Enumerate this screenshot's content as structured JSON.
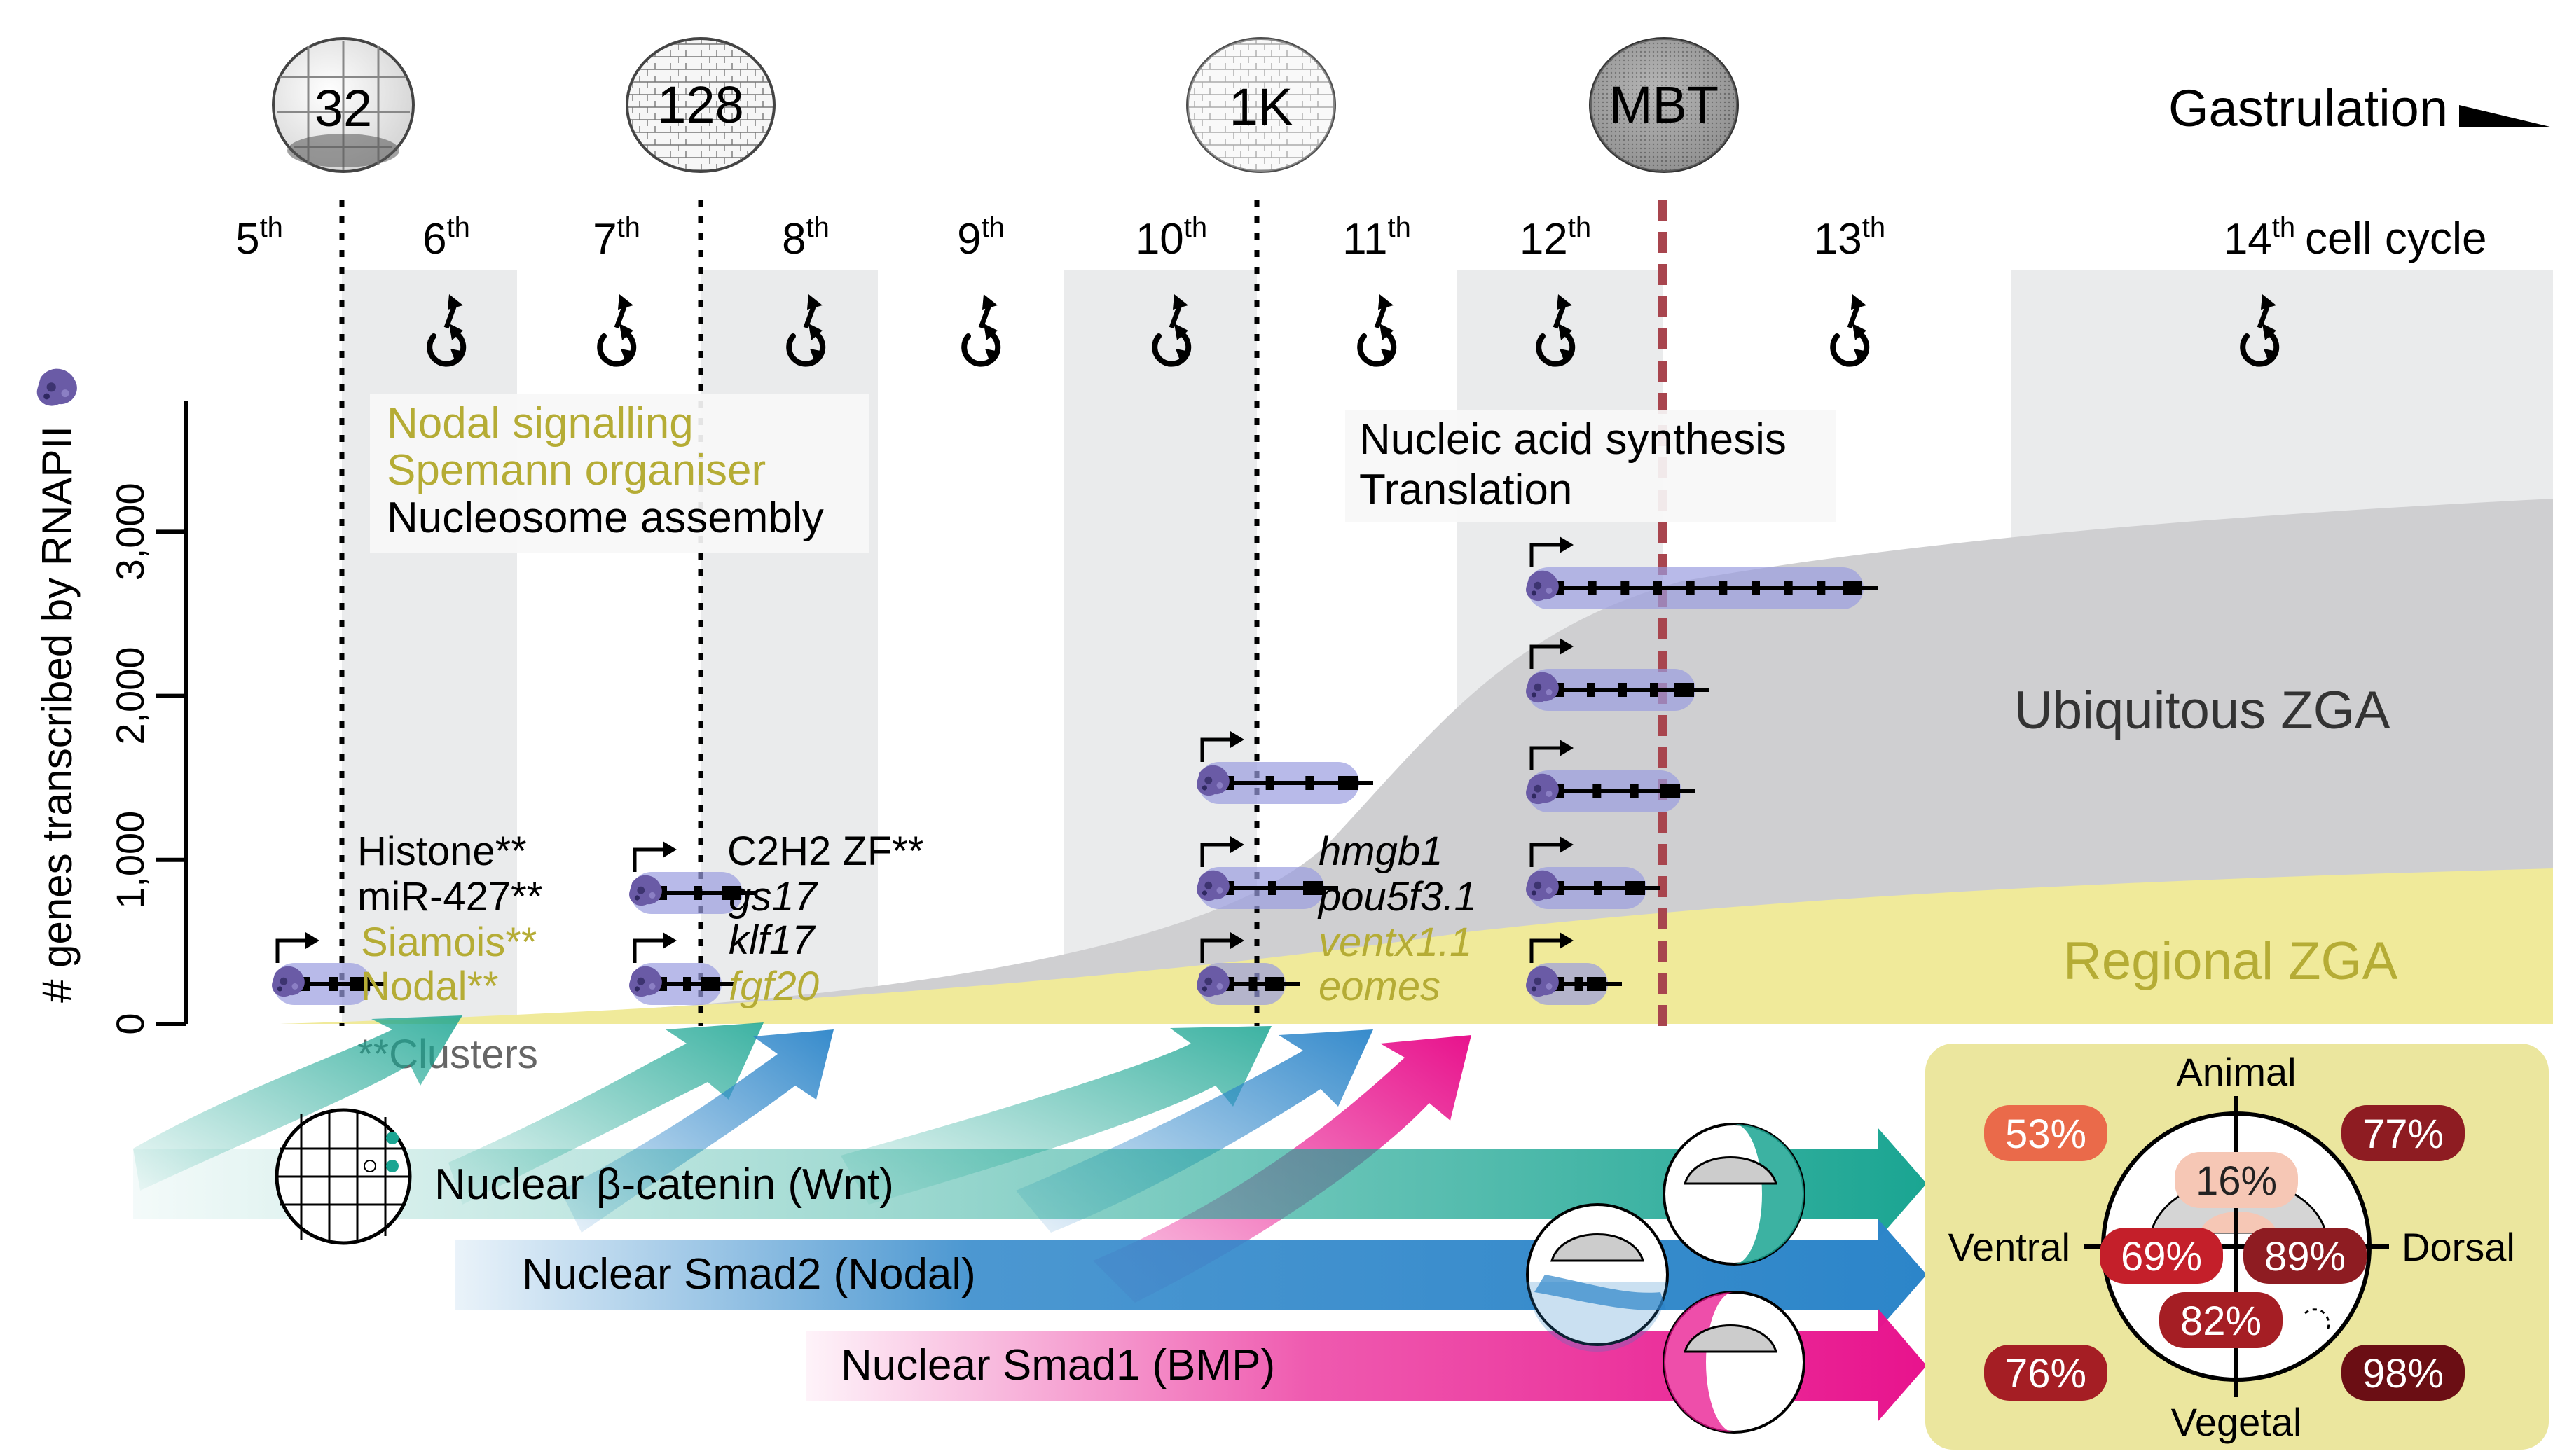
{
  "stages": [
    {
      "key": "32",
      "label": "32"
    },
    {
      "key": "128",
      "label": "128"
    },
    {
      "key": "1k",
      "label": "1K"
    },
    {
      "key": "mbt",
      "label": "MBT"
    }
  ],
  "gastrulation_label": "Gastrulation",
  "cell_cycles": [
    {
      "num": "5",
      "sup": "th"
    },
    {
      "num": "6",
      "sup": "th"
    },
    {
      "num": "7",
      "sup": "th"
    },
    {
      "num": "8",
      "sup": "th"
    },
    {
      "num": "9",
      "sup": "th"
    },
    {
      "num": "10",
      "sup": "th"
    },
    {
      "num": "11",
      "sup": "th"
    },
    {
      "num": "12",
      "sup": "th"
    },
    {
      "num": "13",
      "sup": "th"
    },
    {
      "num": "14",
      "sup": "th"
    }
  ],
  "cell_cycle_label": "cell cycle",
  "y_axis": {
    "label": "# genes transcribed by RNAPII",
    "ticks": [
      "0",
      "1,000",
      "2,000",
      "3,000"
    ],
    "range": [
      0,
      3800
    ]
  },
  "colors": {
    "olive": "#b5ac35",
    "gray_area": "#cfcfd1",
    "yellow_area": "#f0ea9a",
    "band": "#eaebec",
    "mbt_line": "#a8454e",
    "teal": "#1aa592",
    "blue": "#2c85c9",
    "magenta": "#e8138d",
    "panel": "#ebe69e"
  },
  "go_box_left": [
    {
      "text": "Nodal signalling",
      "color": "olive"
    },
    {
      "text": "Spemann organiser",
      "color": "olive"
    },
    {
      "text": "Nucleosome assembly",
      "color": "black"
    }
  ],
  "go_box_right": [
    {
      "text": "Nucleic acid synthesis",
      "color": "black"
    },
    {
      "text": "Translation",
      "color": "black"
    }
  ],
  "gene_labels": {
    "col6": [
      {
        "text": "Histone**",
        "color": "black",
        "italic": false
      },
      {
        "text": "miR-427**",
        "color": "black",
        "italic": false
      },
      {
        "text": "Siamois**",
        "color": "olive",
        "italic": false
      },
      {
        "text": "Nodal**",
        "color": "olive",
        "italic": false
      }
    ],
    "col8": [
      {
        "text": "C2H2 ZF**",
        "color": "black",
        "italic": false
      },
      {
        "text": "gs17",
        "color": "black",
        "italic": true
      },
      {
        "text": "klf17",
        "color": "black",
        "italic": true
      },
      {
        "text": "fgf20",
        "color": "olive",
        "italic": true
      }
    ],
    "col11": [
      {
        "text": "hmgb1",
        "color": "black",
        "italic": true
      },
      {
        "text": "pou5f3.1",
        "color": "black",
        "italic": true
      },
      {
        "text": "ventx1.1",
        "color": "olive",
        "italic": true
      },
      {
        "text": "eomes",
        "color": "olive",
        "italic": true
      }
    ]
  },
  "clusters_note": "**Clusters",
  "area_labels": {
    "ubiquitous": "Ubiquitous ZGA",
    "regional": "Regional ZGA"
  },
  "signals": [
    {
      "key": "wnt",
      "label": "Nuclear β-catenin (Wnt)",
      "color": "teal"
    },
    {
      "key": "nodal",
      "label": "Nuclear Smad2 (Nodal)",
      "color": "blue"
    },
    {
      "key": "bmp",
      "label": "Nuclear Smad1 (BMP)",
      "color": "magenta"
    }
  ],
  "panel": {
    "axes": {
      "top": "Animal",
      "bottom": "Vegetal",
      "left": "Ventral",
      "right": "Dorsal"
    },
    "percents": [
      {
        "key": "out-tl",
        "value": "53%",
        "color": "#ea6a4a",
        "text": "#ffffff"
      },
      {
        "key": "out-tr",
        "value": "77%",
        "color": "#8e1c22",
        "text": "#ffffff"
      },
      {
        "key": "out-bl",
        "value": "76%",
        "color": "#a51e24",
        "text": "#ffffff"
      },
      {
        "key": "out-br",
        "value": "98%",
        "color": "#6b0e14",
        "text": "#ffffff"
      },
      {
        "key": "in-top",
        "value": "16%",
        "color": "#f6c7b5",
        "text": "#222222"
      },
      {
        "key": "in-left",
        "value": "69%",
        "color": "#c41f2a",
        "text": "#ffffff"
      },
      {
        "key": "in-right",
        "value": "89%",
        "color": "#8e1c22",
        "text": "#ffffff"
      },
      {
        "key": "in-bottom",
        "value": "82%",
        "color": "#a51e24",
        "text": "#ffffff"
      }
    ]
  }
}
